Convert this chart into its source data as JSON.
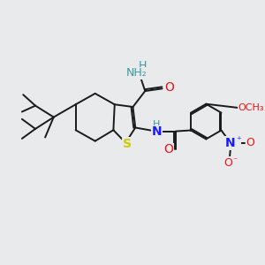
{
  "background_color": "#e8eaeb",
  "bond_color": "#1a1a1a",
  "s_color": "#cccc00",
  "n_color": "#1a1aff",
  "o_color": "#ee1111",
  "h_color": "#3a9a9a",
  "c_color": "#1a1a1a",
  "figsize": [
    3.0,
    3.0
  ],
  "dpi": 100,
  "xlim": [
    0,
    10
  ],
  "ylim": [
    0,
    10
  ]
}
